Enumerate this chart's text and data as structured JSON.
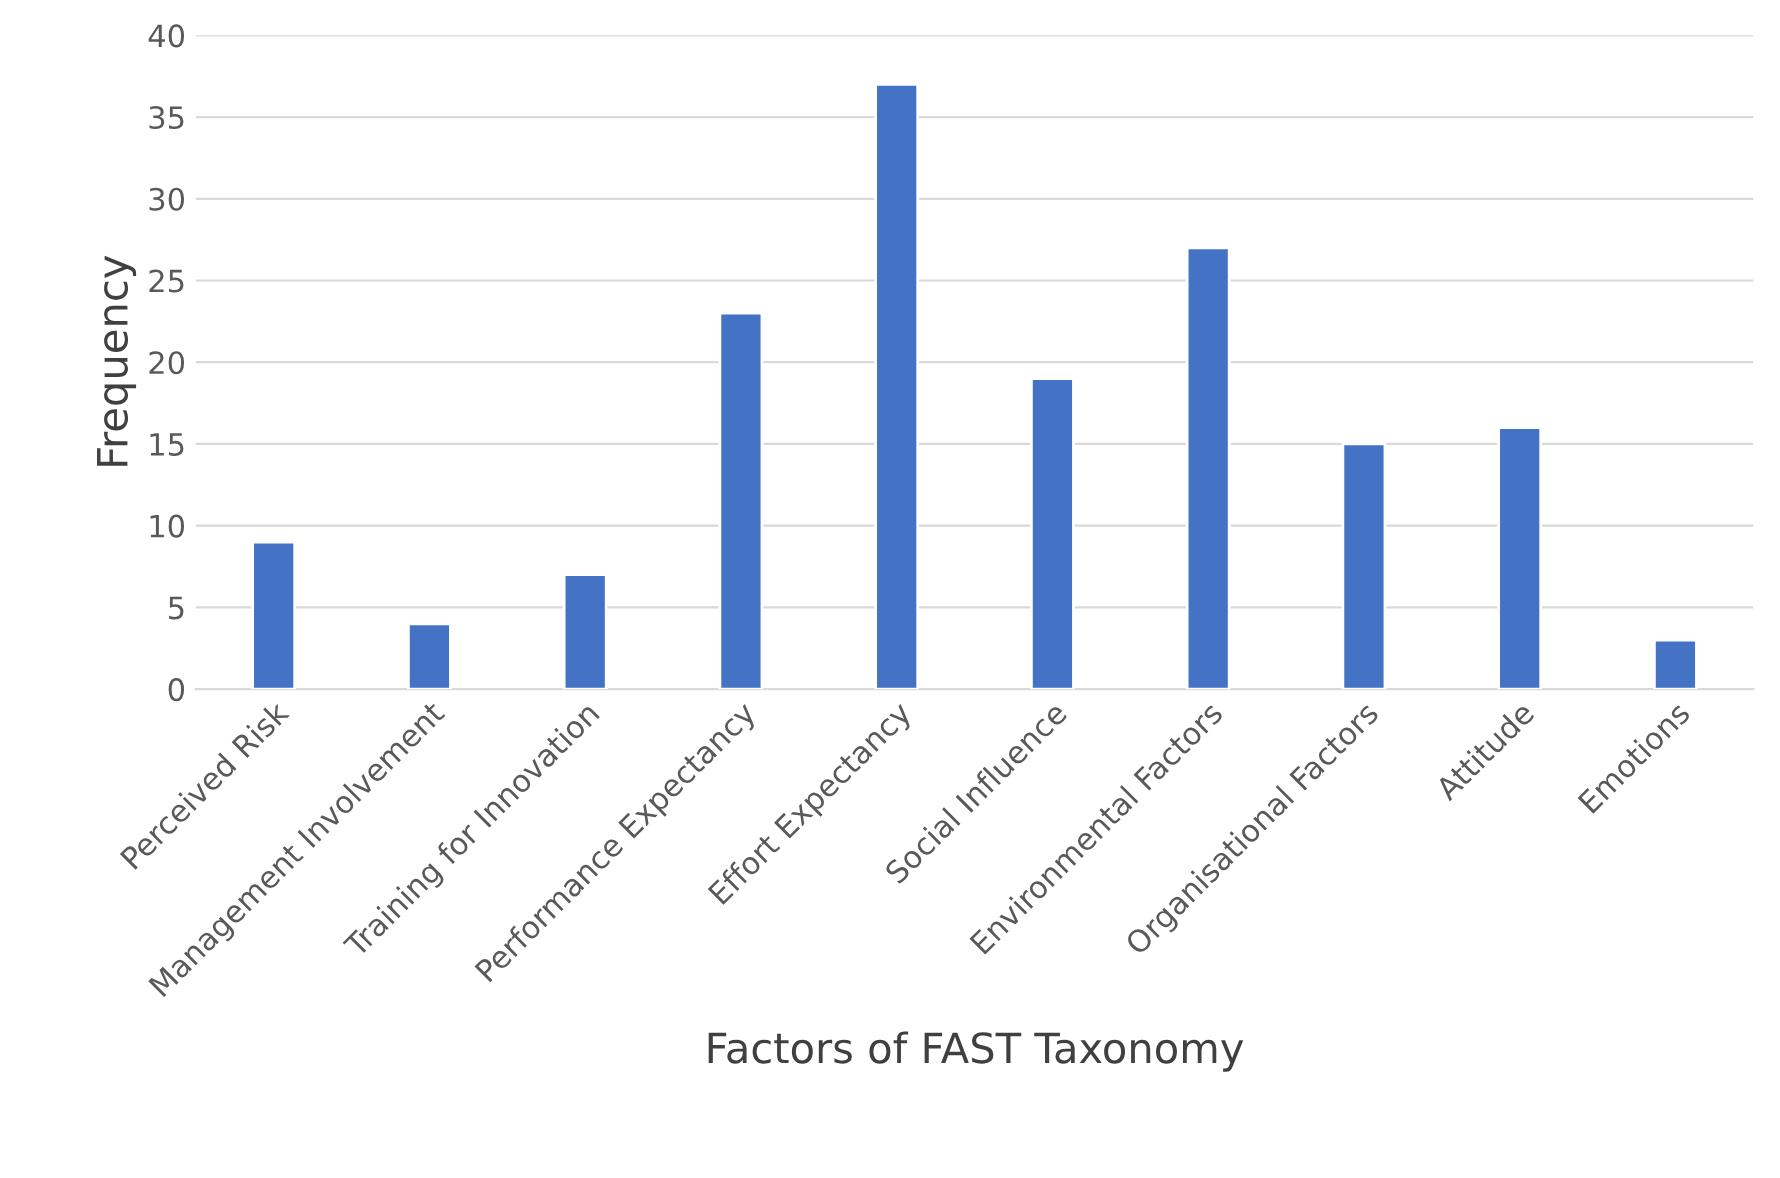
{
  "chart_data": {
    "type": "bar",
    "xlabel": "Factors of FAST Taxonomy",
    "ylabel": "Frequency",
    "categories": [
      "Perceived Risk",
      "Management Involvement",
      "Training for Innovation",
      "Performance Expectancy",
      "Effort Expectancy",
      "Social Influence",
      "Environmental Factors",
      "Organisational Factors",
      "Attitude",
      "Emotions"
    ],
    "values": [
      9,
      4,
      7,
      23,
      37,
      19,
      27,
      15,
      16,
      3
    ],
    "color": "#4472c4",
    "ylim": [
      0,
      40
    ],
    "yticks": [
      0,
      5,
      10,
      15,
      20,
      25,
      30,
      35,
      40
    ],
    "grid": "y",
    "legend": false
  }
}
